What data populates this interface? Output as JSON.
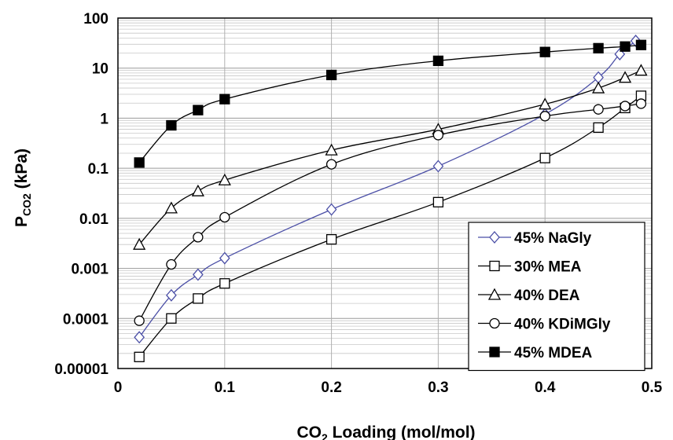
{
  "chart_data": {
    "type": "line",
    "xlabel": {
      "main": "CO",
      "sub": "2",
      "rest": " Loading (mol/mol)"
    },
    "ylabel": {
      "main": "P",
      "sub": "CO2",
      "rest": " (kPa)"
    },
    "xlim": [
      0,
      0.5
    ],
    "ylim": [
      1e-05,
      100
    ],
    "yscale": "log",
    "grid": true,
    "legend_position": "bottom-right",
    "x_tick_labels": [
      "0",
      "0.1",
      "0.2",
      "0.3",
      "0.4",
      "0.5"
    ],
    "y_tick_labels": [
      "0.00001",
      "0.0001",
      "0.001",
      "0.01",
      "0.1",
      "1",
      "10",
      "100"
    ],
    "colors": {
      "nagly": "#4b4fa6",
      "default": "#000000"
    },
    "series": [
      {
        "name": "45% NaGly",
        "marker": "diamond-open",
        "color": "#4b4fa6",
        "x": [
          0.02,
          0.05,
          0.075,
          0.1,
          0.2,
          0.3,
          0.4,
          0.45,
          0.47,
          0.485
        ],
        "y": [
          4.2e-05,
          0.00029,
          0.00075,
          0.0016,
          0.015,
          0.11,
          1.2,
          6.5,
          19,
          35
        ]
      },
      {
        "name": "30% MEA",
        "marker": "square-open",
        "color": "#000000",
        "x": [
          0.02,
          0.05,
          0.075,
          0.1,
          0.2,
          0.3,
          0.4,
          0.45,
          0.475,
          0.49
        ],
        "y": [
          1.7e-05,
          0.0001,
          0.00025,
          0.0005,
          0.0038,
          0.021,
          0.16,
          0.65,
          1.6,
          2.8
        ]
      },
      {
        "name": "40% DEA",
        "marker": "triangle-open",
        "color": "#000000",
        "x": [
          0.02,
          0.05,
          0.075,
          0.1,
          0.2,
          0.3,
          0.4,
          0.45,
          0.475,
          0.49
        ],
        "y": [
          0.003,
          0.016,
          0.035,
          0.058,
          0.23,
          0.6,
          1.9,
          4.0,
          6.5,
          9.0
        ]
      },
      {
        "name": "40% KDiMGly",
        "marker": "circle-open",
        "color": "#000000",
        "x": [
          0.02,
          0.05,
          0.075,
          0.1,
          0.2,
          0.3,
          0.4,
          0.45,
          0.475,
          0.49
        ],
        "y": [
          9e-05,
          0.0012,
          0.0042,
          0.0105,
          0.12,
          0.46,
          1.1,
          1.5,
          1.75,
          1.95
        ]
      },
      {
        "name": "45% MDEA",
        "marker": "square-filled",
        "color": "#000000",
        "x": [
          0.02,
          0.05,
          0.075,
          0.1,
          0.2,
          0.3,
          0.4,
          0.45,
          0.475,
          0.49
        ],
        "y": [
          0.13,
          0.72,
          1.45,
          2.4,
          7.3,
          14,
          21,
          25,
          27,
          29
        ]
      }
    ]
  }
}
